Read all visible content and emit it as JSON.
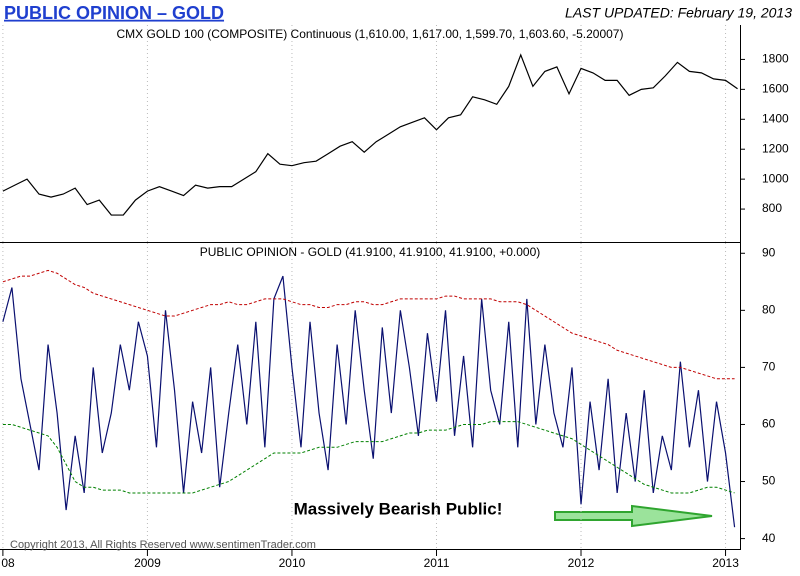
{
  "header": {
    "title": "PUBLIC OPINION – GOLD",
    "last_updated": "LAST UPDATED:  February 19, 2013"
  },
  "footer": {
    "copyright": "Copyright 2013, All Rights Reserved  www.sentimenTrader.com"
  },
  "chart_data": [
    {
      "type": "line",
      "subtitle": "CMX GOLD 100 (COMPOSITE) Continuous (1,610.00, 1,617.00, 1,599.70, 1,603.60, -5.20007)",
      "x": [
        2008,
        2008.083,
        2008.167,
        2008.25,
        2008.333,
        2008.417,
        2008.5,
        2008.583,
        2008.667,
        2008.75,
        2008.833,
        2008.917,
        2009,
        2009.083,
        2009.167,
        2009.25,
        2009.333,
        2009.417,
        2009.5,
        2009.583,
        2009.667,
        2009.75,
        2009.833,
        2009.917,
        2010,
        2010.083,
        2010.167,
        2010.25,
        2010.333,
        2010.417,
        2010.5,
        2010.583,
        2010.667,
        2010.75,
        2010.833,
        2010.917,
        2011,
        2011.083,
        2011.167,
        2011.25,
        2011.333,
        2011.417,
        2011.5,
        2011.583,
        2011.667,
        2011.75,
        2011.833,
        2011.917,
        2012,
        2012.083,
        2012.167,
        2012.25,
        2012.333,
        2012.417,
        2012.5,
        2012.583,
        2012.667,
        2012.75,
        2012.833,
        2012.917,
        2013,
        2013.083
      ],
      "series": [
        {
          "name": "CMX GOLD 100",
          "color": "#000000",
          "style": "solid",
          "values": [
            920,
            960,
            1000,
            900,
            880,
            900,
            940,
            830,
            860,
            760,
            760,
            860,
            920,
            950,
            920,
            890,
            960,
            940,
            950,
            950,
            1000,
            1050,
            1170,
            1100,
            1090,
            1110,
            1120,
            1170,
            1220,
            1250,
            1180,
            1250,
            1300,
            1350,
            1380,
            1410,
            1330,
            1410,
            1430,
            1550,
            1530,
            1500,
            1620,
            1830,
            1620,
            1720,
            1750,
            1570,
            1740,
            1710,
            1660,
            1660,
            1560,
            1600,
            1610,
            1690,
            1780,
            1720,
            1710,
            1670,
            1660,
            1604
          ]
        }
      ],
      "xlim": [
        2007.98,
        2013.1
      ],
      "ylim": [
        580,
        2030
      ],
      "yticks": [
        800,
        1000,
        1200,
        1400,
        1600,
        1800
      ]
    },
    {
      "type": "line",
      "subtitle": "PUBLIC OPINION - GOLD (41.9100, 41.9100, 41.9100, +0.000)",
      "annotations": [
        "Massively Bearish Public!"
      ],
      "x": [
        2008,
        2008.0625,
        2008.125,
        2008.1875,
        2008.25,
        2008.3125,
        2008.375,
        2008.4375,
        2008.5,
        2008.5625,
        2008.625,
        2008.6875,
        2008.75,
        2008.8125,
        2008.875,
        2008.9375,
        2009,
        2009.0625,
        2009.125,
        2009.1875,
        2009.25,
        2009.3125,
        2009.375,
        2009.4375,
        2009.5,
        2009.5625,
        2009.625,
        2009.6875,
        2009.75,
        2009.8125,
        2009.875,
        2009.9375,
        2010,
        2010.0625,
        2010.125,
        2010.1875,
        2010.25,
        2010.3125,
        2010.375,
        2010.4375,
        2010.5,
        2010.5625,
        2010.625,
        2010.6875,
        2010.75,
        2010.8125,
        2010.875,
        2010.9375,
        2011,
        2011.0625,
        2011.125,
        2011.1875,
        2011.25,
        2011.3125,
        2011.375,
        2011.4375,
        2011.5,
        2011.5625,
        2011.625,
        2011.6875,
        2011.75,
        2011.8125,
        2011.875,
        2011.9375,
        2012,
        2012.0625,
        2012.125,
        2012.1875,
        2012.25,
        2012.3125,
        2012.375,
        2012.4375,
        2012.5,
        2012.5625,
        2012.625,
        2012.6875,
        2012.75,
        2012.8125,
        2012.875,
        2012.9375,
        2013,
        2013.0625
      ],
      "series": [
        {
          "name": "Public Opinion",
          "color": "#0a1070",
          "style": "solid",
          "values": [
            78,
            84,
            68,
            60,
            52,
            74,
            62,
            45,
            58,
            48,
            70,
            55,
            62,
            74,
            66,
            78,
            72,
            56,
            80,
            66,
            48,
            64,
            55,
            70,
            49,
            62,
            74,
            60,
            78,
            56,
            82,
            86,
            70,
            56,
            78,
            62,
            52,
            74,
            60,
            80,
            66,
            54,
            77,
            62,
            80,
            70,
            58,
            76,
            64,
            80,
            58,
            72,
            56,
            82,
            66,
            60,
            78,
            56,
            82,
            60,
            74,
            62,
            56,
            70,
            46,
            64,
            52,
            68,
            48,
            62,
            50,
            66,
            48,
            58,
            52,
            71,
            56,
            66,
            50,
            64,
            55,
            42
          ]
        },
        {
          "name": "Upper band",
          "color": "#c00000",
          "style": "dashed",
          "values": [
            85,
            85.5,
            86,
            86,
            86.5,
            87,
            86.5,
            85.5,
            84.5,
            84,
            83,
            82.5,
            82,
            81.5,
            81,
            80.5,
            80,
            79.5,
            79,
            79,
            79.5,
            80,
            80.5,
            81,
            81,
            81.5,
            81,
            81,
            81.5,
            82,
            82,
            82,
            81.5,
            81,
            81,
            80.5,
            80.5,
            81,
            81,
            81.5,
            81.5,
            81,
            81,
            81.5,
            82,
            82,
            82,
            82,
            82,
            82.5,
            82.5,
            82,
            82,
            82,
            82,
            81.5,
            81.5,
            81.5,
            81,
            80,
            79,
            78,
            77,
            76,
            75.5,
            75,
            74.5,
            74,
            73,
            72.5,
            72,
            71.5,
            71,
            70.5,
            70,
            70,
            69.5,
            69,
            68.5,
            68,
            68,
            68
          ]
        },
        {
          "name": "Lower band",
          "color": "#008000",
          "style": "dashed",
          "values": [
            60,
            60,
            59.5,
            59,
            58.5,
            58,
            56,
            53,
            50,
            49,
            49,
            48.5,
            48.5,
            48.5,
            48,
            48,
            48,
            48,
            48,
            48,
            48,
            48,
            48.5,
            49,
            49.5,
            50,
            51,
            52,
            53,
            54,
            55,
            55,
            55,
            55,
            55.5,
            56,
            56,
            56,
            56.5,
            57,
            57,
            57,
            57,
            57.5,
            58,
            58.5,
            58.5,
            59,
            59,
            59,
            59.5,
            60,
            60,
            60,
            60.5,
            60.5,
            60.5,
            60.5,
            60,
            59.5,
            59,
            58.5,
            58,
            57.5,
            56.5,
            55.5,
            54.5,
            53.5,
            52.5,
            51.5,
            50.5,
            49.5,
            49,
            48.5,
            48,
            48,
            48,
            48.5,
            49,
            49,
            48.5,
            48
          ]
        }
      ],
      "xlim": [
        2007.98,
        2013.1
      ],
      "xticks": [
        {
          "value": 2008,
          "label": "08"
        },
        2009,
        2010,
        2011,
        2012,
        2013
      ],
      "ylim": [
        38,
        91.8
      ],
      "yticks": [
        40,
        50,
        60,
        70,
        80,
        90
      ],
      "grid": "x"
    }
  ]
}
